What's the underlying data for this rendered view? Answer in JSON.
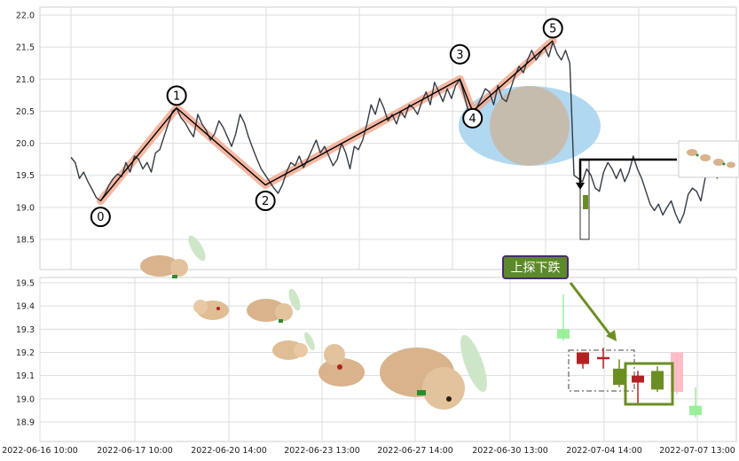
{
  "chart_data": [
    {
      "type": "line",
      "panel": "price",
      "ylim": [
        18.0,
        22.1
      ],
      "yticks": [
        "22.0",
        "21.5",
        "21.0",
        "20.5",
        "20.0",
        "19.5",
        "19.0",
        "18.5"
      ],
      "ytick_values": [
        22.0,
        21.5,
        21.0,
        20.5,
        20.0,
        19.5,
        19.0,
        18.5
      ],
      "grid": true,
      "x_count": 150,
      "series": [
        {
          "values": [
            19.78,
            19.7,
            19.45,
            19.55,
            19.4,
            19.28,
            19.15,
            19.1,
            19.2,
            19.35,
            19.45,
            19.52,
            19.48,
            19.7,
            19.55,
            19.8,
            19.75,
            19.6,
            19.7,
            19.55,
            19.85,
            19.9,
            20.1,
            20.3,
            20.5,
            20.55,
            20.4,
            20.32,
            20.2,
            20.1,
            20.45,
            20.3,
            20.2,
            20.05,
            20.15,
            20.35,
            20.25,
            20.1,
            19.95,
            20.15,
            20.45,
            20.32,
            20.1,
            19.92,
            19.75,
            19.6,
            19.5,
            19.4,
            19.3,
            19.22,
            19.35,
            19.55,
            19.7,
            19.65,
            19.8,
            19.62,
            19.75,
            19.9,
            20.05,
            19.85,
            19.95,
            19.8,
            19.65,
            19.75,
            20.0,
            19.85,
            19.6,
            19.95,
            19.9,
            20.05,
            20.3,
            20.6,
            20.45,
            20.7,
            20.55,
            20.35,
            20.45,
            20.3,
            20.5,
            20.4,
            20.6,
            20.55,
            20.45,
            20.65,
            20.8,
            20.6,
            20.95,
            20.8,
            20.65,
            20.85,
            20.7,
            20.9,
            21.0,
            20.75,
            20.5,
            20.35,
            20.55,
            20.7,
            20.85,
            20.8,
            20.6,
            20.9,
            20.7,
            20.65,
            20.85,
            21.05,
            21.2,
            21.1,
            21.3,
            21.45,
            21.3,
            21.4,
            21.5,
            21.35,
            21.58,
            21.4,
            21.3,
            21.45,
            21.25,
            19.5,
            19.45,
            19.4,
            19.6,
            19.5,
            19.3,
            19.25,
            19.55,
            19.7,
            19.6,
            19.45,
            19.6,
            19.4,
            19.55,
            19.8,
            19.6,
            19.45,
            19.25,
            19.05,
            18.95,
            19.05,
            18.88,
            19.0,
            19.1,
            18.9,
            18.75,
            18.9,
            19.2,
            19.3,
            19.25,
            19.1,
            19.45,
            19.7,
            19.5,
            19.45
          ]
        },
        {
          "role": "zigzag",
          "points": [
            {
              "x": 7,
              "y": 19.1,
              "label": "0"
            },
            {
              "x": 25,
              "y": 20.55,
              "label": "1"
            },
            {
              "x": 46,
              "y": 19.35,
              "label": "2"
            },
            {
              "x": 92,
              "y": 21.0,
              "label": "3"
            },
            {
              "x": 95,
              "y": 20.5,
              "label": "4"
            },
            {
              "x": 114,
              "y": 21.6,
              "label": "5"
            }
          ]
        }
      ]
    },
    {
      "type": "candlestick",
      "panel": "candles",
      "ylim": [
        18.83,
        19.53
      ],
      "yticks": [
        "19.5",
        "19.4",
        "19.3",
        "19.2",
        "19.1",
        "19.0",
        "18.9"
      ],
      "ytick_values": [
        19.5,
        19.4,
        19.3,
        19.2,
        19.1,
        19.0,
        18.9
      ],
      "xticks": [
        "2022-06-16 10:00",
        "2022-06-17 10:00",
        "2022-06-20 14:00",
        "2022-06-23 13:00",
        "2022-06-27 14:00",
        "2022-06-30 13:00",
        "2022-07-04 14:00",
        "2022-07-07 13:00"
      ],
      "candles": [
        {
          "i": 0,
          "open": 19.26,
          "close": 19.3,
          "high": 19.45,
          "low": 19.25,
          "color": "#90ee90",
          "faded": true
        },
        {
          "i": 1,
          "open": 19.2,
          "close": 19.15,
          "high": 19.2,
          "low": 19.13,
          "color": "#b22222"
        },
        {
          "i": 2,
          "open": 19.18,
          "close": 19.18,
          "high": 19.22,
          "low": 19.13,
          "color": "#b22222"
        },
        {
          "i": 3,
          "open": 19.06,
          "close": 19.13,
          "high": 19.17,
          "low": 19.05,
          "color": "#6b8e23"
        },
        {
          "i": 4,
          "open": 19.1,
          "close": 19.07,
          "high": 19.12,
          "low": 18.98,
          "color": "#b22222"
        },
        {
          "i": 5,
          "open": 19.04,
          "close": 19.12,
          "high": 19.14,
          "low": 19.03,
          "color": "#6b8e23"
        },
        {
          "i": 6,
          "open": 19.2,
          "close": 19.03,
          "high": 19.2,
          "low": 19.02,
          "color": "#ffb6c1",
          "faded": true
        },
        {
          "i": 7,
          "open": 18.93,
          "close": 18.97,
          "high": 19.05,
          "low": 18.92,
          "color": "#90ee90",
          "faded": true
        }
      ],
      "pattern_label": "上探下跌"
    }
  ]
}
